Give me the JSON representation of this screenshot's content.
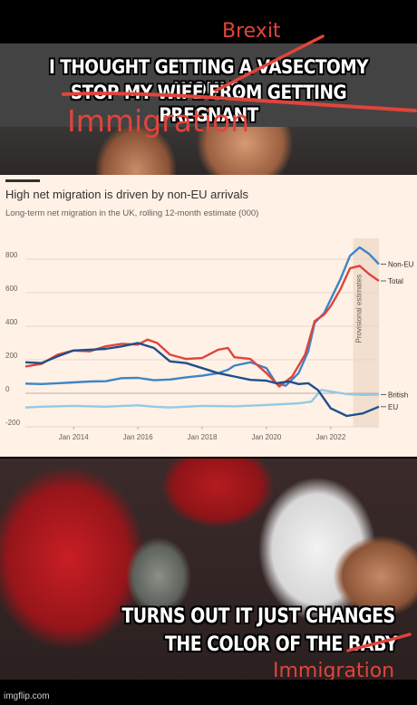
{
  "meme": {
    "top_text_line1": "I THOUGHT GETTING A VASECTOMY WOULD",
    "top_text_line2": "STOP MY WIFE FROM GETTING PREGNANT",
    "annotation_brexit": "Brexit",
    "annotation_immigration_top": "Immigration",
    "bottom_text_line1": "TURNS OUT IT JUST CHANGES",
    "bottom_text_line2": "THE COLOR OF THE BABY",
    "annotation_immigration_bottom": "Immigration",
    "watermark": "imgflip.com",
    "annotation_color": "#e0443c"
  },
  "chart": {
    "title": "High net migration is driven by non-EU arrivals",
    "subtitle": "Long-term net migration in the UK, rolling 12-month estimate (000)",
    "provisional_label": "Provisional estimates"
  },
  "chart_data": {
    "type": "line",
    "title": "High net migration is driven by non-EU arrivals",
    "subtitle": "Long-term net migration in the UK, rolling 12-month estimate (000)",
    "x_ticks": [
      "Jan 2014",
      "Jan 2016",
      "Jan 2018",
      "Jan 2020",
      "Jan 2022"
    ],
    "y_ticks": [
      -200,
      0,
      200,
      400,
      600,
      800
    ],
    "ylim": [
      -200,
      870
    ],
    "xlim": [
      2012.5,
      2023.5
    ],
    "annotation": "Provisional estimates",
    "series": [
      {
        "name": "Non-EU",
        "color": "#3d85c6",
        "points": [
          [
            2012.5,
            58
          ],
          [
            2013.0,
            55
          ],
          [
            2013.5,
            60
          ],
          [
            2014.0,
            65
          ],
          [
            2014.5,
            70
          ],
          [
            2015.0,
            72
          ],
          [
            2015.5,
            90
          ],
          [
            2016.0,
            92
          ],
          [
            2016.5,
            78
          ],
          [
            2017.0,
            82
          ],
          [
            2017.5,
            95
          ],
          [
            2018.0,
            105
          ],
          [
            2018.5,
            120
          ],
          [
            2018.8,
            140
          ],
          [
            2019.0,
            165
          ],
          [
            2019.5,
            185
          ],
          [
            2020.0,
            150
          ],
          [
            2020.3,
            60
          ],
          [
            2020.6,
            45
          ],
          [
            2021.0,
            120
          ],
          [
            2021.3,
            250
          ],
          [
            2021.5,
            420
          ],
          [
            2021.8,
            480
          ],
          [
            2022.0,
            560
          ],
          [
            2022.3,
            680
          ],
          [
            2022.6,
            820
          ],
          [
            2022.9,
            870
          ],
          [
            2023.2,
            830
          ],
          [
            2023.5,
            770
          ]
        ]
      },
      {
        "name": "Total",
        "color": "#e0443c",
        "points": [
          [
            2012.5,
            160
          ],
          [
            2013.0,
            175
          ],
          [
            2013.5,
            230
          ],
          [
            2014.0,
            255
          ],
          [
            2014.5,
            250
          ],
          [
            2015.0,
            280
          ],
          [
            2015.5,
            295
          ],
          [
            2016.0,
            290
          ],
          [
            2016.3,
            320
          ],
          [
            2016.6,
            300
          ],
          [
            2017.0,
            230
          ],
          [
            2017.5,
            205
          ],
          [
            2018.0,
            210
          ],
          [
            2018.5,
            260
          ],
          [
            2018.8,
            270
          ],
          [
            2019.0,
            215
          ],
          [
            2019.5,
            205
          ],
          [
            2020.0,
            120
          ],
          [
            2020.4,
            40
          ],
          [
            2020.8,
            100
          ],
          [
            2021.2,
            230
          ],
          [
            2021.5,
            430
          ],
          [
            2021.8,
            470
          ],
          [
            2022.0,
            520
          ],
          [
            2022.3,
            620
          ],
          [
            2022.6,
            745
          ],
          [
            2022.9,
            760
          ],
          [
            2023.2,
            710
          ],
          [
            2023.5,
            670
          ]
        ]
      },
      {
        "name": "British",
        "color": "#93c9e6",
        "points": [
          [
            2012.5,
            -85
          ],
          [
            2013.0,
            -80
          ],
          [
            2014.0,
            -75
          ],
          [
            2015.0,
            -80
          ],
          [
            2016.0,
            -72
          ],
          [
            2016.5,
            -80
          ],
          [
            2017.0,
            -85
          ],
          [
            2018.0,
            -75
          ],
          [
            2019.0,
            -78
          ],
          [
            2020.0,
            -70
          ],
          [
            2020.5,
            -65
          ],
          [
            2021.0,
            -60
          ],
          [
            2021.4,
            -50
          ],
          [
            2021.7,
            20
          ],
          [
            2022.0,
            10
          ],
          [
            2022.5,
            -5
          ],
          [
            2023.0,
            -10
          ],
          [
            2023.5,
            -8
          ]
        ]
      },
      {
        "name": "EU",
        "color": "#1f4e8c",
        "points": [
          [
            2012.5,
            185
          ],
          [
            2013.0,
            180
          ],
          [
            2013.5,
            220
          ],
          [
            2014.0,
            255
          ],
          [
            2014.5,
            260
          ],
          [
            2015.0,
            265
          ],
          [
            2015.5,
            280
          ],
          [
            2016.0,
            300
          ],
          [
            2016.5,
            270
          ],
          [
            2017.0,
            190
          ],
          [
            2017.5,
            180
          ],
          [
            2018.0,
            150
          ],
          [
            2018.5,
            120
          ],
          [
            2019.0,
            100
          ],
          [
            2019.5,
            80
          ],
          [
            2020.0,
            75
          ],
          [
            2020.3,
            60
          ],
          [
            2020.7,
            70
          ],
          [
            2021.0,
            55
          ],
          [
            2021.3,
            60
          ],
          [
            2021.6,
            20
          ],
          [
            2022.0,
            -90
          ],
          [
            2022.5,
            -135
          ],
          [
            2023.0,
            -120
          ],
          [
            2023.5,
            -80
          ]
        ]
      }
    ]
  }
}
